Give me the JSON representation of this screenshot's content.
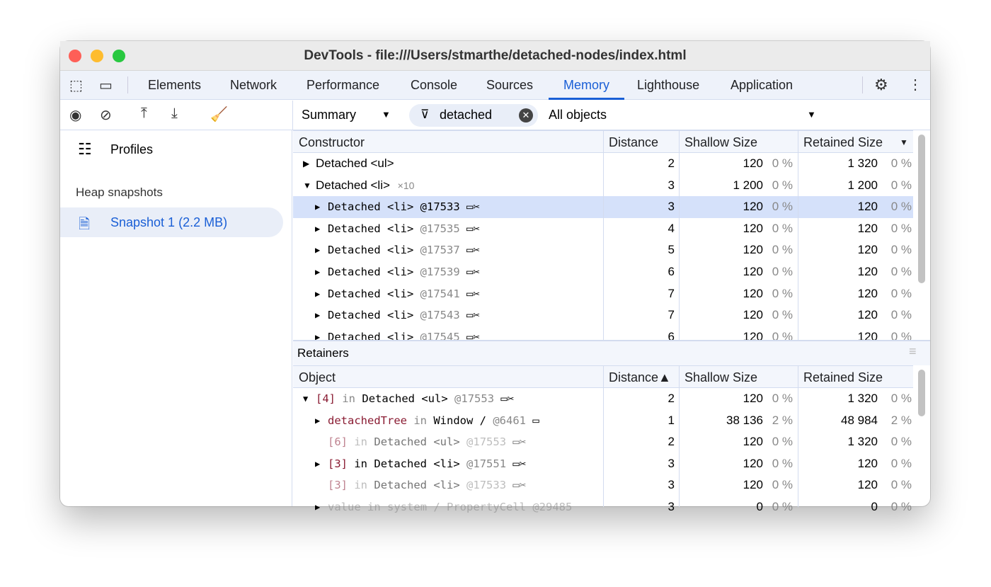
{
  "window": {
    "title": "DevTools - file:///Users/stmarthe/detached-nodes/index.html"
  },
  "tabs": [
    {
      "label": "Elements"
    },
    {
      "label": "Network"
    },
    {
      "label": "Performance"
    },
    {
      "label": "Console"
    },
    {
      "label": "Sources"
    },
    {
      "label": "Memory",
      "active": true
    },
    {
      "label": "Lighthouse"
    },
    {
      "label": "Application"
    }
  ],
  "toolbar": {
    "view_select": "Summary",
    "filter_value": "detached",
    "objects_select": "All objects"
  },
  "sidebar": {
    "profiles_label": "Profiles",
    "section_label": "Heap snapshots",
    "snapshot_label": "Snapshot 1 (2.2 MB)"
  },
  "upper": {
    "headers": {
      "constructor": "Constructor",
      "distance": "Distance",
      "shallow": "Shallow Size",
      "retained": "Retained Size"
    },
    "rows": [
      {
        "arrow": "right",
        "indent": 0,
        "mono": false,
        "segs": [
          {
            "t": "Detached <ul>",
            "c": ""
          }
        ],
        "icons": "",
        "dist": "2",
        "sh": "120",
        "shp": "0 %",
        "re": "1 320",
        "rep": "0 %"
      },
      {
        "arrow": "down",
        "indent": 0,
        "mono": false,
        "segs": [
          {
            "t": "Detached <li>",
            "c": ""
          },
          {
            "t": "×10",
            "c": "gray small"
          }
        ],
        "icons": "",
        "dist": "3",
        "sh": "1 200",
        "shp": "0 %",
        "re": "1 200",
        "rep": "0 %"
      },
      {
        "arrow": "right",
        "indent": 1,
        "mono": true,
        "sel": true,
        "segs": [
          {
            "t": "Detached <li>",
            "c": ""
          },
          {
            "t": "@17533",
            "c": ""
          }
        ],
        "icons": "ws",
        "dist": "3",
        "sh": "120",
        "shp": "0 %",
        "re": "120",
        "rep": "0 %"
      },
      {
        "arrow": "right",
        "indent": 1,
        "mono": true,
        "segs": [
          {
            "t": "Detached <li>",
            "c": ""
          },
          {
            "t": "@17535",
            "c": "gray"
          }
        ],
        "icons": "ws",
        "dist": "4",
        "sh": "120",
        "shp": "0 %",
        "re": "120",
        "rep": "0 %"
      },
      {
        "arrow": "right",
        "indent": 1,
        "mono": true,
        "segs": [
          {
            "t": "Detached <li>",
            "c": ""
          },
          {
            "t": "@17537",
            "c": "gray"
          }
        ],
        "icons": "ws",
        "dist": "5",
        "sh": "120",
        "shp": "0 %",
        "re": "120",
        "rep": "0 %"
      },
      {
        "arrow": "right",
        "indent": 1,
        "mono": true,
        "segs": [
          {
            "t": "Detached <li>",
            "c": ""
          },
          {
            "t": "@17539",
            "c": "gray"
          }
        ],
        "icons": "ws",
        "dist": "6",
        "sh": "120",
        "shp": "0 %",
        "re": "120",
        "rep": "0 %"
      },
      {
        "arrow": "right",
        "indent": 1,
        "mono": true,
        "segs": [
          {
            "t": "Detached <li>",
            "c": ""
          },
          {
            "t": "@17541",
            "c": "gray"
          }
        ],
        "icons": "ws",
        "dist": "7",
        "sh": "120",
        "shp": "0 %",
        "re": "120",
        "rep": "0 %"
      },
      {
        "arrow": "right",
        "indent": 1,
        "mono": true,
        "segs": [
          {
            "t": "Detached <li>",
            "c": ""
          },
          {
            "t": "@17543",
            "c": "gray"
          }
        ],
        "icons": "ws",
        "dist": "7",
        "sh": "120",
        "shp": "0 %",
        "re": "120",
        "rep": "0 %"
      },
      {
        "arrow": "right",
        "indent": 1,
        "mono": true,
        "segs": [
          {
            "t": "Detached <li>",
            "c": ""
          },
          {
            "t": "@17545",
            "c": "gray"
          }
        ],
        "icons": "ws",
        "dist": "6",
        "sh": "120",
        "shp": "0 %",
        "re": "120",
        "rep": "0 %"
      }
    ]
  },
  "retainers": {
    "title": "Retainers",
    "headers": {
      "object": "Object",
      "distance": "Distance▲",
      "shallow": "Shallow Size",
      "retained": "Retained Size"
    },
    "rows": [
      {
        "arrow": "down",
        "indent": 0,
        "segs": [
          {
            "t": "[4]",
            "c": "red"
          },
          {
            "t": "in",
            "c": "gray"
          },
          {
            "t": "Detached <ul>",
            "c": ""
          },
          {
            "t": "@17553",
            "c": "gray"
          }
        ],
        "icons": "ws",
        "dist": "2",
        "sh": "120",
        "shp": "0 %",
        "re": "1 320",
        "rep": "0 %"
      },
      {
        "arrow": "right",
        "indent": 1,
        "segs": [
          {
            "t": "detachedTree",
            "c": "red"
          },
          {
            "t": "in",
            "c": "gray"
          },
          {
            "t": "Window /",
            "c": ""
          },
          {
            "t": " @6461",
            "c": "gray"
          }
        ],
        "icons": "w",
        "dist": "1",
        "sh": "38 136",
        "shp": "2 %",
        "re": "48 984",
        "rep": "2 %"
      },
      {
        "arrow": "none",
        "indent": 1,
        "dim": true,
        "segs": [
          {
            "t": "[6]",
            "c": "red"
          },
          {
            "t": "in",
            "c": "gray"
          },
          {
            "t": "Detached <ul>",
            "c": ""
          },
          {
            "t": "@17553",
            "c": "gray"
          }
        ],
        "icons": "ws",
        "dist": "2",
        "sh": "120",
        "shp": "0 %",
        "re": "1 320",
        "rep": "0 %"
      },
      {
        "arrow": "right",
        "indent": 1,
        "segs": [
          {
            "t": "[3]",
            "c": "red"
          },
          {
            "t": "in",
            "c": ""
          },
          {
            "t": "Detached <li>",
            "c": ""
          },
          {
            "t": "@17551",
            "c": "gray"
          }
        ],
        "icons": "ws",
        "dist": "3",
        "sh": "120",
        "shp": "0 %",
        "re": "120",
        "rep": "0 %"
      },
      {
        "arrow": "none",
        "indent": 1,
        "dim": true,
        "segs": [
          {
            "t": "[3]",
            "c": "red"
          },
          {
            "t": "in",
            "c": "gray"
          },
          {
            "t": "Detached <li>",
            "c": ""
          },
          {
            "t": "@17533",
            "c": "gray"
          }
        ],
        "icons": "ws",
        "dist": "3",
        "sh": "120",
        "shp": "0 %",
        "re": "120",
        "rep": "0 %"
      },
      {
        "arrow": "right",
        "indent": 1,
        "dim": true,
        "segs": [
          {
            "t": "value",
            "c": "gray"
          },
          {
            "t": "in",
            "c": "gray"
          },
          {
            "t": "system / PropertyCell",
            "c": "gray"
          },
          {
            "t": "@29485",
            "c": "gray"
          }
        ],
        "icons": "",
        "dist": "3",
        "sh": "0",
        "shp": "0 %",
        "re": "0",
        "rep": "0 %"
      }
    ]
  },
  "colors": {
    "accent": "#1a5fd6",
    "selected_row": "#d5e1fa",
    "retainer_name": "#8a1c33"
  }
}
